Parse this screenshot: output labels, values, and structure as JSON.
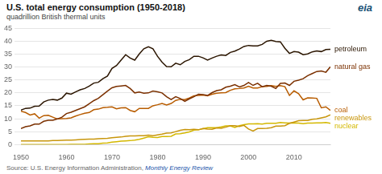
{
  "chart_data": {
    "type": "line",
    "title": "U.S. total energy consumption (1950-2018)",
    "subtitle": "quadrillion British thermal units",
    "annotations": [
      "Source: U.S. Energy Information Administration,",
      "Monthly Energy Review",
      "eia"
    ],
    "x": [
      1950,
      1951,
      1952,
      1953,
      1954,
      1955,
      1956,
      1957,
      1958,
      1959,
      1960,
      1961,
      1962,
      1963,
      1964,
      1965,
      1966,
      1967,
      1968,
      1969,
      1970,
      1971,
      1972,
      1973,
      1974,
      1975,
      1976,
      1977,
      1978,
      1979,
      1980,
      1981,
      1982,
      1983,
      1984,
      1985,
      1986,
      1987,
      1988,
      1989,
      1990,
      1991,
      1992,
      1993,
      1994,
      1995,
      1996,
      1997,
      1998,
      1999,
      2000,
      2001,
      2002,
      2003,
      2004,
      2005,
      2006,
      2007,
      2008,
      2009,
      2010,
      2011,
      2012,
      2013,
      2014,
      2015,
      2016,
      2017,
      2018
    ],
    "series": [
      {
        "name": "petroleum",
        "color": "#2b1500",
        "values": [
          13.3,
          14.0,
          14.1,
          14.8,
          14.9,
          16.5,
          17.2,
          17.5,
          17.2,
          18.0,
          19.9,
          19.5,
          20.4,
          21.2,
          21.7,
          22.6,
          23.8,
          24.1,
          25.5,
          26.5,
          29.5,
          30.6,
          32.7,
          34.8,
          33.5,
          32.7,
          35.1,
          37.1,
          37.9,
          37.1,
          34.2,
          31.9,
          30.2,
          30.1,
          31.5,
          30.9,
          32.2,
          32.9,
          34.2,
          34.2,
          33.6,
          32.7,
          33.5,
          34.2,
          34.7,
          34.5,
          35.7,
          36.2,
          37.0,
          38.0,
          38.4,
          38.2,
          38.2,
          38.8,
          40.0,
          40.4,
          39.9,
          39.8,
          37.3,
          35.3,
          36.0,
          35.8,
          34.8,
          35.1,
          35.9,
          36.3,
          36.0,
          36.8,
          36.9
        ]
      },
      {
        "name": "natural gas",
        "color": "#7b3000",
        "values": [
          6.2,
          6.9,
          7.2,
          7.9,
          7.9,
          9.0,
          9.4,
          9.4,
          9.9,
          10.6,
          12.0,
          12.5,
          13.2,
          13.9,
          14.6,
          15.8,
          17.0,
          17.9,
          19.3,
          20.7,
          22.0,
          22.5,
          22.7,
          22.9,
          21.7,
          20.0,
          20.3,
          19.9,
          20.0,
          20.7,
          20.4,
          20.0,
          18.5,
          17.4,
          18.5,
          17.8,
          16.7,
          17.7,
          18.5,
          19.5,
          19.3,
          19.0,
          20.1,
          20.9,
          21.2,
          22.2,
          22.6,
          23.2,
          22.3,
          22.9,
          24.0,
          22.9,
          23.7,
          22.4,
          22.9,
          22.6,
          21.7,
          23.7,
          23.8,
          22.9,
          24.5,
          24.9,
          25.5,
          26.7,
          27.5,
          28.3,
          28.5,
          28.0,
          30.1
        ]
      },
      {
        "name": "coal",
        "color": "#b85c00",
        "values": [
          12.9,
          12.4,
          11.4,
          11.9,
          10.2,
          11.2,
          11.3,
          10.6,
          9.9,
          10.0,
          10.1,
          10.3,
          11.0,
          11.6,
          12.1,
          12.4,
          13.5,
          13.7,
          14.3,
          14.4,
          14.6,
          13.8,
          14.2,
          14.3,
          13.2,
          12.7,
          14.0,
          14.0,
          14.0,
          15.0,
          15.4,
          15.9,
          15.3,
          15.9,
          17.1,
          17.5,
          17.4,
          18.0,
          18.9,
          19.0,
          19.2,
          18.9,
          19.5,
          19.9,
          20.0,
          20.1,
          21.0,
          21.6,
          21.7,
          21.9,
          22.6,
          21.9,
          21.9,
          22.4,
          22.5,
          22.8,
          22.5,
          22.8,
          22.4,
          19.0,
          20.8,
          19.7,
          17.3,
          18.1,
          18.0,
          17.9,
          14.2,
          14.6,
          13.2
        ]
      },
      {
        "name": "renewables",
        "color": "#c8960c",
        "values": [
          1.4,
          1.4,
          1.4,
          1.4,
          1.4,
          1.4,
          1.4,
          1.5,
          1.5,
          1.6,
          1.7,
          1.7,
          1.8,
          1.9,
          2.0,
          2.1,
          2.1,
          2.2,
          2.3,
          2.4,
          2.6,
          2.8,
          2.9,
          3.2,
          3.3,
          3.3,
          3.4,
          3.4,
          3.6,
          3.4,
          3.7,
          4.0,
          4.4,
          4.5,
          5.0,
          5.5,
          5.8,
          5.7,
          5.9,
          5.7,
          6.2,
          6.0,
          5.9,
          6.4,
          6.3,
          6.7,
          7.3,
          7.3,
          7.0,
          7.4,
          6.0,
          5.2,
          6.2,
          6.2,
          6.3,
          6.5,
          7.1,
          7.1,
          7.3,
          8.2,
          8.7,
          9.2,
          9.3,
          9.3,
          9.8,
          9.9,
          10.3,
          10.7,
          11.5
        ]
      },
      {
        "name": "nuclear",
        "color": "#d4b800",
        "values": [
          0.0,
          0.0,
          0.0,
          0.0,
          0.0,
          0.0,
          0.0,
          0.0,
          0.0,
          0.0,
          0.0,
          0.1,
          0.1,
          0.1,
          0.1,
          0.2,
          0.3,
          0.3,
          0.5,
          0.6,
          0.9,
          1.1,
          1.3,
          1.4,
          1.5,
          1.7,
          2.0,
          2.5,
          3.0,
          2.8,
          2.7,
          3.1,
          3.1,
          3.2,
          4.1,
          4.2,
          4.5,
          4.9,
          5.6,
          5.7,
          6.1,
          6.5,
          6.5,
          6.5,
          6.8,
          7.2,
          7.2,
          6.6,
          7.3,
          7.7,
          8.0,
          8.0,
          8.1,
          7.9,
          8.2,
          8.2,
          8.2,
          8.5,
          8.4,
          8.3,
          8.4,
          8.3,
          8.1,
          8.3,
          8.3,
          8.4,
          8.4,
          8.5,
          8.2
        ]
      }
    ],
    "xlim": [
      1950,
      2018
    ],
    "xticks": [
      1950,
      1960,
      1970,
      1980,
      1990,
      2000,
      2010
    ],
    "ylim": [
      0,
      45
    ],
    "yticks": [
      0,
      5,
      10,
      15,
      20,
      25,
      30,
      35,
      40,
      45
    ],
    "grid": true
  }
}
